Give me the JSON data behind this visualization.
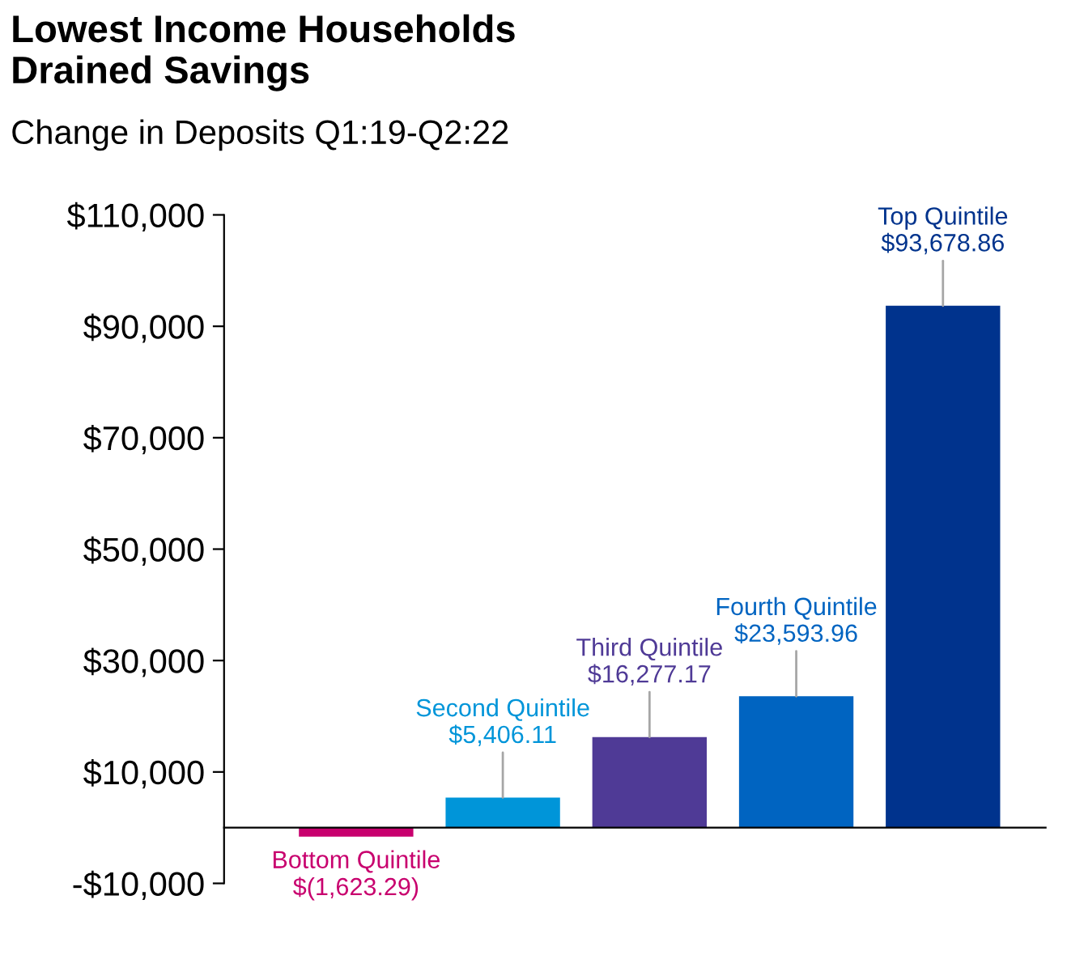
{
  "chart_data": {
    "type": "bar",
    "title": "Lowest Income Households\nDrained Savings",
    "subtitle": "Change in Deposits Q1:19-Q2:22",
    "categories": [
      "Bottom Quintile",
      "Second Quintile",
      "Third Quintile",
      "Fourth Quintile",
      "Top Quintile"
    ],
    "values": [
      -1623.29,
      5406.11,
      16277.17,
      23593.96,
      93678.86
    ],
    "value_labels": [
      "$(1,623.29)",
      "$5,406.11",
      "$16,277.17",
      "$23,593.96",
      "$93,678.86"
    ],
    "colors": [
      "#c8006e",
      "#0095d9",
      "#4f3a96",
      "#0064c1",
      "#00338d"
    ],
    "ylim": [
      -10000,
      110000
    ],
    "yticks": [
      {
        "value": -10000,
        "label": "-$10,000"
      },
      {
        "value": 10000,
        "label": "$10,000"
      },
      {
        "value": 30000,
        "label": "$30,000"
      },
      {
        "value": 50000,
        "label": "$50,000"
      },
      {
        "value": 70000,
        "label": "$70,000"
      },
      {
        "value": 90000,
        "label": "$90,000"
      },
      {
        "value": 110000,
        "label": "$110,000"
      }
    ],
    "tick_labels": "y",
    "grid": false,
    "legend": false
  }
}
